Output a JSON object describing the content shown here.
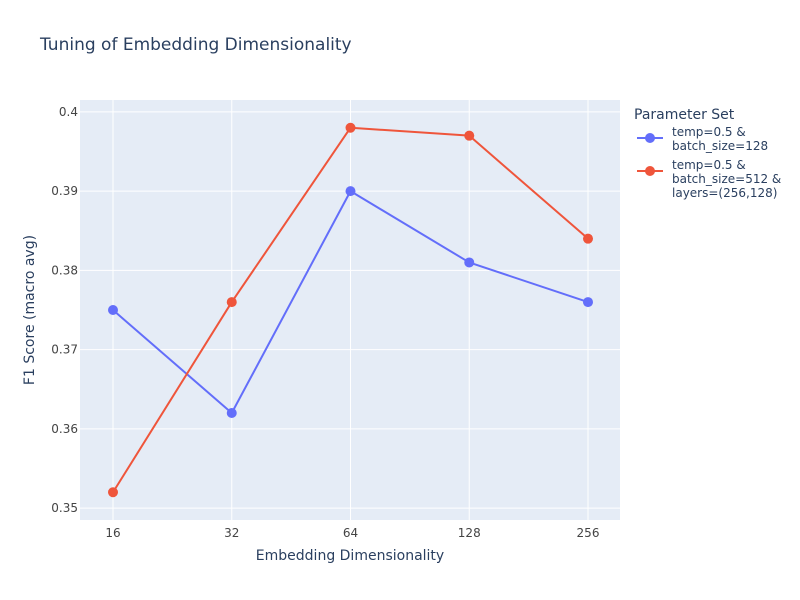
{
  "chart_data": {
    "type": "line",
    "title": "Tuning of Embedding Dimensionality",
    "xlabel": "Embedding Dimensionality",
    "ylabel": "F1 Score (macro avg)",
    "x": [
      "16",
      "32",
      "64",
      "128",
      "256"
    ],
    "ylim": [
      0.3485,
      0.4015
    ],
    "yticks": [
      "0.35",
      "0.36",
      "0.37",
      "0.38",
      "0.39",
      "0.4"
    ],
    "ytick_values": [
      0.35,
      0.36,
      0.37,
      0.38,
      0.39,
      0.4
    ],
    "grid": true,
    "legend": {
      "title": "Parameter Set",
      "placement": "right"
    },
    "series": [
      {
        "name": "temp=0.5 & batch_size=128",
        "name_lines": [
          "temp=0.5 &",
          "batch_size=128"
        ],
        "color": "#636efa",
        "values": [
          0.375,
          0.362,
          0.39,
          0.381,
          0.376
        ]
      },
      {
        "name": "temp=0.5 & batch_size=512 & layers=(256,128)",
        "name_lines": [
          "temp=0.5 &",
          "batch_size=512 &",
          "layers=(256,128)"
        ],
        "color": "#ef553b",
        "values": [
          0.352,
          0.376,
          0.398,
          0.397,
          0.384
        ]
      }
    ],
    "colors": {
      "plot_bg": "#e5ecf6",
      "grid": "#ffffff",
      "text": "#2a3f5f",
      "tick_text": "#444444"
    }
  }
}
